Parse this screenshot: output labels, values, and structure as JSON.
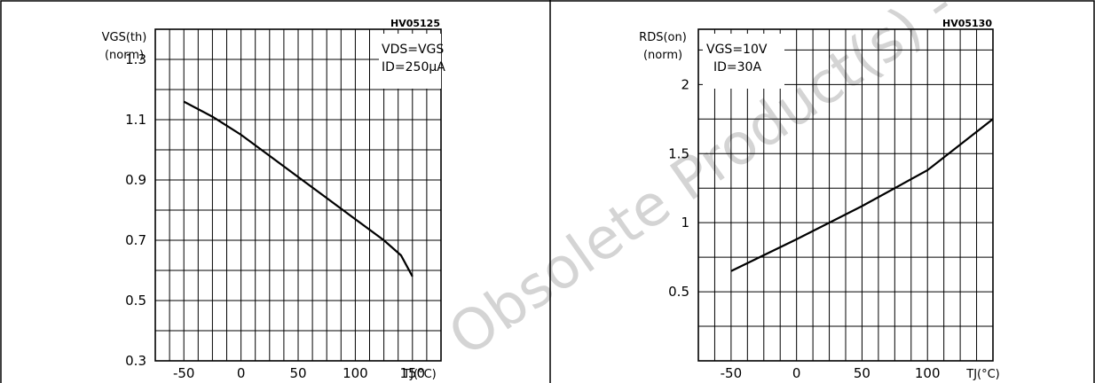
{
  "watermark": "Obsolete Product(s) - Obsolete Product(s)",
  "chart_data": [
    {
      "type": "line",
      "code": "HV05125",
      "ylabel_line1": "VGS(th)",
      "ylabel_line2": "(norm)",
      "xlabel": "TJ(°C)",
      "annotation_line1": "VDS=VGS",
      "annotation_line2": "ID=250µA",
      "xlim": [
        -75,
        175
      ],
      "ylim": [
        0.3,
        1.4
      ],
      "x_gridlines": [
        -75,
        -62.5,
        -50,
        -37.5,
        -25,
        -12.5,
        0,
        12.5,
        25,
        37.5,
        50,
        62.5,
        75,
        87.5,
        100,
        112.5,
        125,
        137.5,
        150,
        162.5,
        175
      ],
      "y_gridlines": [
        0.3,
        0.4,
        0.5,
        0.6,
        0.7,
        0.8,
        0.9,
        1.0,
        1.1,
        1.2,
        1.3,
        1.4
      ],
      "x_ticks": [
        "-50",
        "0",
        "50",
        "100",
        "150"
      ],
      "x_tick_values": [
        -50,
        0,
        50,
        100,
        150
      ],
      "y_ticks": [
        "0.3",
        "0.5",
        "0.7",
        "0.9",
        "1.1",
        "1.3"
      ],
      "y_tick_values": [
        0.3,
        0.5,
        0.7,
        0.9,
        1.1,
        1.3
      ],
      "series": [
        {
          "x": [
            -50,
            -25,
            0,
            25,
            50,
            75,
            100,
            125,
            140,
            150
          ],
          "y": [
            1.16,
            1.11,
            1.05,
            0.98,
            0.91,
            0.84,
            0.77,
            0.7,
            0.65,
            0.58
          ]
        }
      ],
      "grid": true
    },
    {
      "type": "line",
      "code": "HV05130",
      "ylabel_line1": "RDS(on)",
      "ylabel_line2": "(norm)",
      "xlabel": "TJ(°C)",
      "annotation_line1": "VGS=10V",
      "annotation_line2": "ID=30A",
      "xlim": [
        -75,
        150
      ],
      "ylim": [
        0,
        2.4
      ],
      "x_gridlines": [
        -75,
        -62.5,
        -50,
        -37.5,
        -25,
        -12.5,
        0,
        12.5,
        25,
        37.5,
        50,
        62.5,
        75,
        87.5,
        100,
        112.5,
        125,
        137.5,
        150
      ],
      "y_gridlines": [
        0,
        0.25,
        0.5,
        0.75,
        1.0,
        1.25,
        1.5,
        1.75,
        2.0,
        2.25,
        2.4
      ],
      "x_ticks": [
        "-50",
        "0",
        "50",
        "100"
      ],
      "x_tick_values": [
        -50,
        0,
        50,
        100
      ],
      "y_ticks": [
        "0.5",
        "1",
        "1.5",
        "2"
      ],
      "y_tick_values": [
        0.5,
        1,
        1.5,
        2
      ],
      "series": [
        {
          "x": [
            -50,
            0,
            50,
            100,
            150
          ],
          "y": [
            0.65,
            0.88,
            1.12,
            1.38,
            1.75
          ]
        }
      ],
      "grid": true
    }
  ]
}
